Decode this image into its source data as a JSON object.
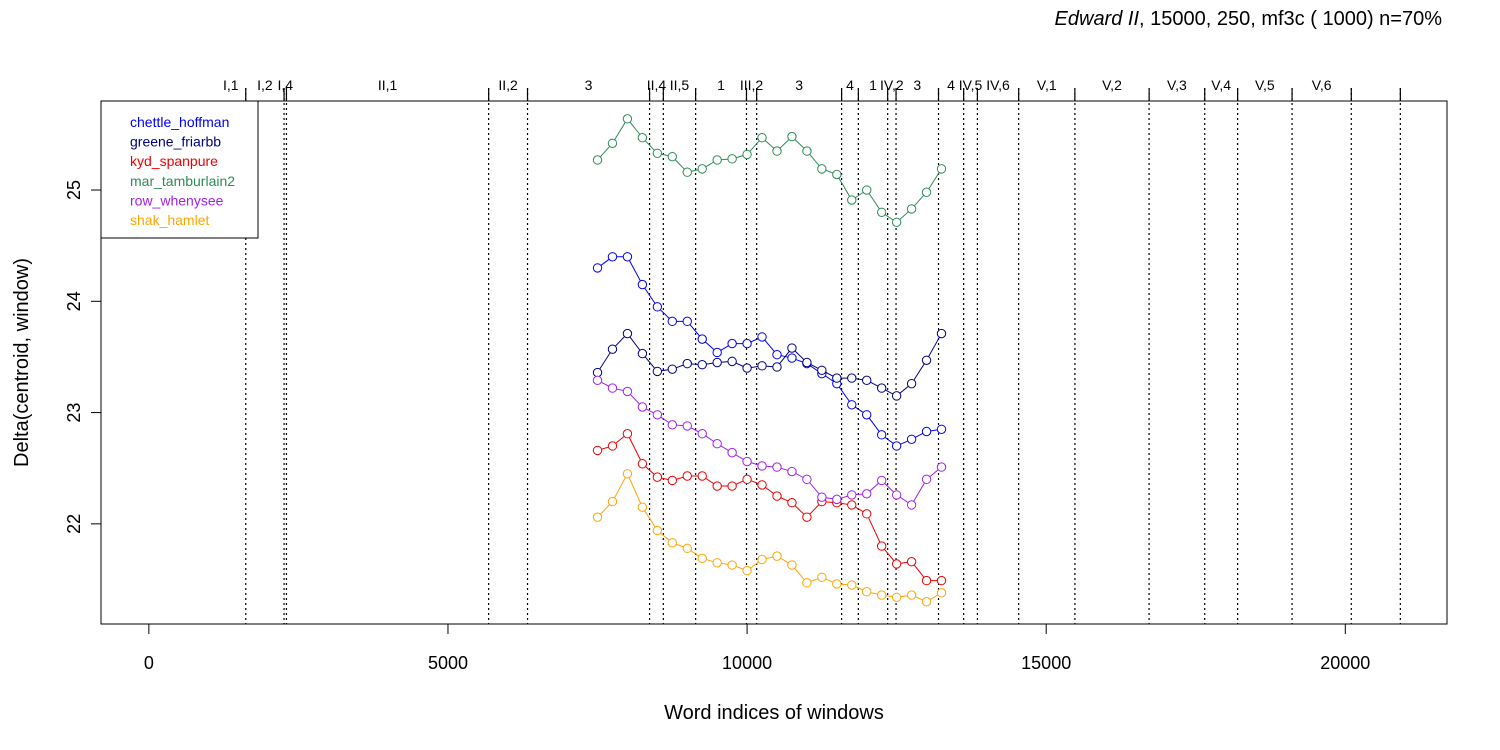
{
  "chart_data": {
    "type": "line",
    "title_italic": "Edward II",
    "title_rest": ", 15000, 250, mf3c ( 1000)   n=70%",
    "xlabel": "Word indices of windows",
    "ylabel": "Delta(centroid, window)",
    "xlim": [
      -800,
      21700
    ],
    "ylim": [
      21.1,
      25.8
    ],
    "xticks": [
      0,
      5000,
      10000,
      15000,
      20000
    ],
    "yticks": [
      22,
      23,
      24,
      25
    ],
    "legend_position": "top-left",
    "x": [
      7500,
      7750,
      8000,
      8250,
      8500,
      8750,
      9000,
      9250,
      9500,
      9750,
      10000,
      10250,
      10500,
      10750,
      11000,
      11250,
      11500,
      11750,
      12000,
      12250,
      12500,
      12750,
      13000,
      13250
    ],
    "series": [
      {
        "name": "chettle_hoffman",
        "color": "#0000ee",
        "values": [
          24.3,
          24.4,
          24.4,
          24.15,
          23.95,
          23.82,
          23.82,
          23.66,
          23.54,
          23.62,
          23.62,
          23.68,
          23.52,
          23.49,
          23.44,
          23.35,
          23.26,
          23.07,
          22.98,
          22.8,
          22.7,
          22.76,
          22.83,
          22.85
        ]
      },
      {
        "name": "greene_friarbb",
        "color": "#000080",
        "values": [
          23.36,
          23.57,
          23.71,
          23.53,
          23.37,
          23.39,
          23.44,
          23.43,
          23.45,
          23.46,
          23.4,
          23.42,
          23.41,
          23.58,
          23.45,
          23.38,
          23.31,
          23.31,
          23.29,
          23.22,
          23.15,
          23.26,
          23.47,
          23.71
        ]
      },
      {
        "name": "kyd_spanpure",
        "color": "#ee0000",
        "values": [
          22.66,
          22.7,
          22.81,
          22.54,
          22.42,
          22.39,
          22.43,
          22.43,
          22.34,
          22.34,
          22.4,
          22.35,
          22.25,
          22.19,
          22.06,
          22.2,
          22.19,
          22.17,
          22.09,
          21.8,
          21.64,
          21.66,
          21.49,
          21.49
        ]
      },
      {
        "name": "mar_tamburlain2",
        "color": "#2e8b57",
        "values": [
          25.27,
          25.42,
          25.64,
          25.47,
          25.33,
          25.3,
          25.16,
          25.19,
          25.27,
          25.28,
          25.32,
          25.47,
          25.35,
          25.48,
          25.35,
          25.19,
          25.14,
          24.91,
          25.0,
          24.8,
          24.71,
          24.83,
          24.98,
          25.19
        ]
      },
      {
        "name": "row_whenysee",
        "color": "#a020f0",
        "values": [
          23.29,
          23.22,
          23.19,
          23.05,
          22.98,
          22.89,
          22.88,
          22.81,
          22.72,
          22.64,
          22.56,
          22.52,
          22.51,
          22.47,
          22.4,
          22.24,
          22.22,
          22.26,
          22.27,
          22.39,
          22.26,
          22.17,
          22.4,
          22.51
        ]
      },
      {
        "name": "shak_hamlet",
        "color": "#ffa500",
        "values": [
          22.06,
          22.2,
          22.45,
          22.15,
          21.94,
          21.83,
          21.78,
          21.69,
          21.65,
          21.63,
          21.58,
          21.68,
          21.71,
          21.63,
          21.47,
          21.52,
          21.46,
          21.45,
          21.39,
          21.36,
          21.34,
          21.36,
          21.3,
          21.38
        ]
      }
    ],
    "scene_boundaries": [
      {
        "x": 1620,
        "label": "I,1"
      },
      {
        "x": 2260,
        "label": "I,2"
      },
      {
        "x": 2300,
        "label": "I,4"
      },
      {
        "x": 5680,
        "label": "II,1"
      },
      {
        "x": 6330,
        "label": "II,2"
      },
      {
        "x": 8370,
        "label": "3"
      },
      {
        "x": 8600,
        "label": "II,4"
      },
      {
        "x": 9140,
        "label": "II,5"
      },
      {
        "x": 9990,
        "label": "1"
      },
      {
        "x": 10160,
        "label": "III,2"
      },
      {
        "x": 11580,
        "label": "3"
      },
      {
        "x": 11860,
        "label": "4"
      },
      {
        "x": 12350,
        "label": "1"
      },
      {
        "x": 12490,
        "label": "IV,2"
      },
      {
        "x": 13200,
        "label": "3"
      },
      {
        "x": 13620,
        "label": "4"
      },
      {
        "x": 13850,
        "label": "IV,5"
      },
      {
        "x": 14540,
        "label": "IV,6"
      },
      {
        "x": 15480,
        "label": "V,1"
      },
      {
        "x": 16720,
        "label": "V,2"
      },
      {
        "x": 17650,
        "label": "V,3"
      },
      {
        "x": 18200,
        "label": "V,4"
      },
      {
        "x": 19110,
        "label": "V,5"
      },
      {
        "x": 20100,
        "label": "V,6"
      },
      {
        "x": 20920,
        "label": ""
      }
    ]
  }
}
